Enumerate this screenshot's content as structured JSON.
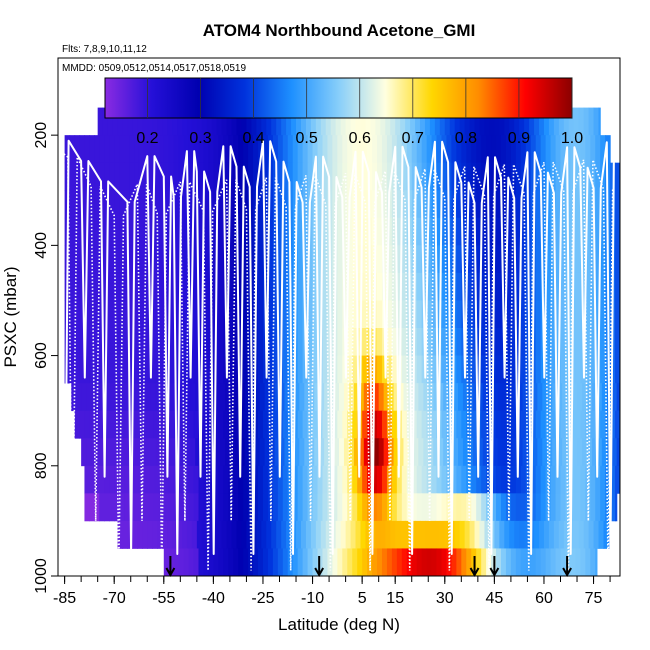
{
  "chart_data": {
    "type": "heatmap",
    "title": "ATOM4 Northbound Acetone_GMI",
    "subtitle_flights": "Flts: 7,8,9,10,11,12",
    "subtitle_dates": "MMDD: 0509,0512,0514,0517,0518,0519",
    "xlabel": "Latitude (deg N)",
    "ylabel": "PSXC (mbar)",
    "xlim": [
      -87,
      83
    ],
    "ylim": [
      1000,
      60
    ],
    "x_ticks": [
      -85,
      -70,
      -55,
      -40,
      -25,
      -10,
      5,
      15,
      30,
      45,
      60,
      75
    ],
    "x_tick_labels": [
      "-85",
      "-70",
      "-55",
      "-40",
      "-25",
      "-10",
      "5",
      "15",
      "30",
      "45",
      "60",
      "75"
    ],
    "y_ticks": [
      200,
      400,
      600,
      800,
      1000
    ],
    "y_tick_labels": [
      "200",
      "400",
      "600",
      "800",
      "1000"
    ],
    "colorbar": {
      "min": 0.12,
      "max": 1.0,
      "ticks": [
        0.2,
        0.3,
        0.4,
        0.5,
        0.6,
        0.7,
        0.8,
        0.9,
        1.0
      ],
      "tick_labels": [
        "0.2",
        "0.3",
        "0.4",
        "0.5",
        "0.6",
        "0.7",
        "0.8",
        "0.9",
        "1.0"
      ],
      "stops": [
        "#8a2be2",
        "#2510d8",
        "#0000b0",
        "#0033dd",
        "#1e90ff",
        "#87cefa",
        "#ffffe0",
        "#ffd700",
        "#ff8c00",
        "#ff0000",
        "#8b0000"
      ]
    },
    "flight_arrow_latitudes": [
      -53,
      -8,
      39,
      45,
      67
    ],
    "pressure_levels": [
      175,
      225,
      275,
      325,
      375,
      425,
      475,
      525,
      575,
      625,
      675,
      725,
      775,
      825,
      875,
      925,
      975
    ],
    "level_lat_ranges": [
      [
        -75,
        77
      ],
      [
        -85,
        80
      ],
      [
        -85,
        83
      ],
      [
        -85,
        83
      ],
      [
        -85,
        83
      ],
      [
        -85,
        83
      ],
      [
        -85,
        83
      ],
      [
        -85,
        83
      ],
      [
        -85,
        83
      ],
      [
        -85,
        83
      ],
      [
        -83,
        83
      ],
      [
        -82,
        83
      ],
      [
        -80,
        83
      ],
      [
        -79,
        83
      ],
      [
        -79,
        82
      ],
      [
        -69,
        80
      ],
      [
        -55,
        76
      ]
    ]
  }
}
